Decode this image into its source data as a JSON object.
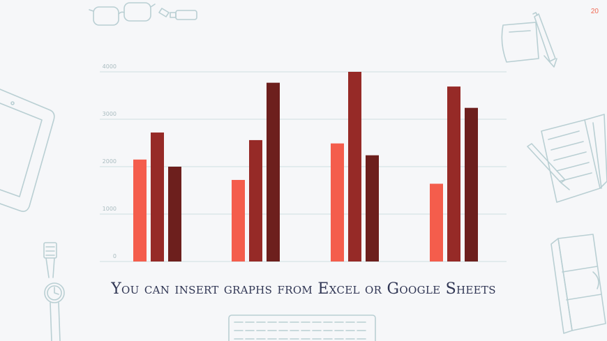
{
  "slide": {
    "page_number": "20",
    "caption": "You can insert graphs from Excel or Google Sheets"
  },
  "decorations": [
    "glasses-icon",
    "usb-drive-icon",
    "sticky-note-icon",
    "pencil-icon",
    "tablet-icon",
    "notebook-icon",
    "pen-icon",
    "wristwatch-icon",
    "keyboard-icon",
    "book-icon"
  ],
  "colors": {
    "background": "#f6f7f9",
    "doodle": "#b9cfd3",
    "caption": "#2f3553",
    "page_number": "#f06a55"
  },
  "chart_data": {
    "type": "bar",
    "categories": [
      "",
      "",
      "",
      ""
    ],
    "series": [
      {
        "values": [
          2150,
          1720,
          2490,
          1640
        ],
        "color": "#f45d4c"
      },
      {
        "values": [
          2720,
          2560,
          4000,
          3690
        ],
        "color": "#962a27"
      },
      {
        "values": [
          2000,
          3770,
          2240,
          3240
        ],
        "color": "#6d1f1d"
      }
    ],
    "yticks": [
      "0",
      "1000",
      "2000",
      "3000",
      "4000"
    ],
    "ylim": [
      0,
      4000
    ],
    "grid": true,
    "legend": "none"
  }
}
